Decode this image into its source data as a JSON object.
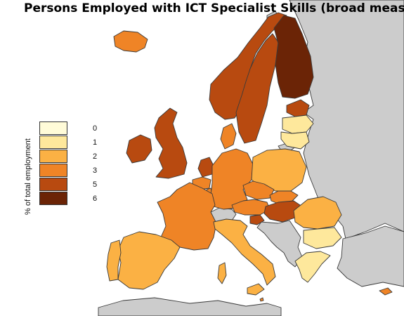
{
  "title": "Persons Employed with ICT Specialist Skills (broad measure",
  "legend": {
    "title": "% of total employment",
    "classes": [
      {
        "label": "0",
        "color": "#fffbd8"
      },
      {
        "label": "1",
        "color": "#fee89c"
      },
      {
        "label": "2",
        "color": "#fbb144"
      },
      {
        "label": "3",
        "color": "#ef8426"
      },
      {
        "label": "5",
        "color": "#b84a10"
      },
      {
        "label": "6",
        "color": "#6b2406"
      }
    ]
  },
  "colors": {
    "no_data": "#cccccc",
    "border": "#3a3a3a"
  },
  "countries": [
    {
      "name": "Iceland",
      "class": 3
    },
    {
      "name": "Norway",
      "class": 4
    },
    {
      "name": "Sweden",
      "class": 4
    },
    {
      "name": "Finland",
      "class": 5
    },
    {
      "name": "Estonia",
      "class": 4
    },
    {
      "name": "Latvia",
      "class": 1
    },
    {
      "name": "Lithuania",
      "class": 1
    },
    {
      "name": "Denmark",
      "class": 3
    },
    {
      "name": "United Kingdom",
      "class": 4
    },
    {
      "name": "Ireland",
      "class": 4
    },
    {
      "name": "Netherlands",
      "class": 4
    },
    {
      "name": "Belgium",
      "class": 3
    },
    {
      "name": "Luxembourg",
      "class": 3
    },
    {
      "name": "Germany",
      "class": 3
    },
    {
      "name": "Poland",
      "class": 2
    },
    {
      "name": "Czech Republic",
      "class": 3
    },
    {
      "name": "Slovakia",
      "class": 3
    },
    {
      "name": "Austria",
      "class": 3
    },
    {
      "name": "Hungary",
      "class": 4
    },
    {
      "name": "Slovenia",
      "class": 4
    },
    {
      "name": "France",
      "class": 3
    },
    {
      "name": "Spain",
      "class": 2
    },
    {
      "name": "Portugal",
      "class": 2
    },
    {
      "name": "Italy",
      "class": 2
    },
    {
      "name": "Romania",
      "class": 2
    },
    {
      "name": "Bulgaria",
      "class": 1
    },
    {
      "name": "Greece",
      "class": 1
    },
    {
      "name": "Malta",
      "class": 3
    },
    {
      "name": "Cyprus",
      "class": 3
    }
  ]
}
